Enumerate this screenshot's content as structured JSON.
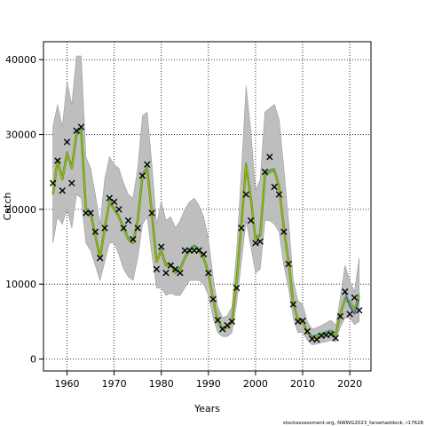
{
  "chart_data": {
    "type": "line",
    "xlabel": "Years",
    "ylabel": "Catch",
    "xlim": [
      1955,
      2024.5
    ],
    "ylim": [
      -1600,
      42400
    ],
    "x_ticks": [
      1960,
      1970,
      1980,
      1990,
      2000,
      2010,
      2020
    ],
    "y_ticks": [
      0,
      10000,
      20000,
      30000,
      40000
    ],
    "grid": true,
    "footnote": "stockassessment.org, NWWG2023_faroehaddock, r17628",
    "colors": {
      "band": "#bebebe",
      "band_edge": "#9a9a9a",
      "estimate_olive": "#6f8f1a",
      "estimate_green": "#8fc21a",
      "estimate_blue": "#3a5fbf",
      "estimate_teal": "#2c9c9c",
      "observation": "#000000"
    },
    "estimate_years": [
      1957,
      1958,
      1959,
      1960,
      1961,
      1962,
      1963,
      1964,
      1965,
      1966,
      1967,
      1968,
      1969,
      1970,
      1971,
      1972,
      1973,
      1974,
      1975,
      1976,
      1977,
      1978,
      1979,
      1980,
      1981,
      1982,
      1983,
      1984,
      1985,
      1986,
      1987,
      1988,
      1989,
      1990,
      1991,
      1992,
      1993,
      1994,
      1995,
      1996,
      1997,
      1998,
      1999,
      2000,
      2001,
      2002,
      2003,
      2004,
      2005,
      2006,
      2007,
      2008,
      2009,
      2010,
      2011,
      2012,
      2013,
      2014,
      2015,
      2016,
      2017,
      2018,
      2019,
      2020,
      2021,
      2022
    ],
    "estimate": [
      22000,
      26500,
      24000,
      27500,
      25500,
      30000,
      30500,
      20000,
      19500,
      16500,
      13500,
      17500,
      21000,
      20000,
      19000,
      17500,
      16000,
      15500,
      18500,
      24500,
      25500,
      19500,
      13000,
      14500,
      12500,
      12500,
      11500,
      12000,
      13500,
      14500,
      15000,
      14500,
      13500,
      11500,
      8000,
      5000,
      4000,
      4200,
      5000,
      10500,
      18000,
      26000,
      21500,
      16000,
      16500,
      24500,
      25000,
      25200,
      23000,
      17500,
      13000,
      7500,
      5200,
      5000,
      3500,
      2800,
      3000,
      3200,
      3400,
      3600,
      3200,
      6000,
      8000,
      7500,
      6500,
      8500
    ],
    "estimate_alt_last": [
      9000,
      7000,
      6000,
      8000
    ],
    "alt_years": [
      2019,
      2020,
      2021,
      2022
    ],
    "ci_lower": [
      15500,
      19000,
      18000,
      20000,
      17500,
      22000,
      21500,
      15500,
      14500,
      12500,
      10500,
      13000,
      15500,
      15500,
      14000,
      12000,
      11000,
      10500,
      13500,
      18000,
      19000,
      14000,
      9500,
      9500,
      8500,
      8800,
      8500,
      8500,
      9500,
      10500,
      10500,
      10500,
      10000,
      8500,
      5500,
      3500,
      3000,
      3000,
      3500,
      7500,
      13000,
      18500,
      15000,
      11500,
      12000,
      18500,
      18500,
      18000,
      17000,
      12500,
      9500,
      5500,
      3500,
      3600,
      2500,
      1900,
      2000,
      2200,
      2300,
      2500,
      2300,
      4300,
      5500,
      5500,
      4600,
      5000
    ],
    "ci_upper": [
      31000,
      34000,
      31000,
      37000,
      34000,
      40500,
      40500,
      27000,
      25500,
      22000,
      18000,
      24000,
      27000,
      26000,
      25500,
      23500,
      22000,
      21500,
      25500,
      32500,
      33000,
      26000,
      18000,
      21000,
      18500,
      19000,
      17500,
      18500,
      20000,
      21000,
      21500,
      20500,
      19000,
      16000,
      11000,
      7000,
      5500,
      5800,
      7000,
      14500,
      25000,
      36500,
      30500,
      22500,
      24000,
      33000,
      33500,
      34000,
      32000,
      25500,
      18500,
      10500,
      7800,
      7300,
      5000,
      4000,
      4200,
      4500,
      4800,
      5200,
      4500,
      8200,
      12500,
      10500,
      9000,
      13500
    ],
    "observed_years": [
      1957,
      1958,
      1959,
      1960,
      1961,
      1962,
      1963,
      1964,
      1965,
      1966,
      1967,
      1968,
      1969,
      1970,
      1971,
      1972,
      1973,
      1974,
      1975,
      1976,
      1977,
      1978,
      1979,
      1980,
      1981,
      1982,
      1983,
      1984,
      1985,
      1986,
      1987,
      1988,
      1989,
      1990,
      1991,
      1992,
      1993,
      1994,
      1995,
      1996,
      1997,
      1998,
      1999,
      2000,
      2001,
      2002,
      2003,
      2004,
      2005,
      2006,
      2007,
      2008,
      2009,
      2010,
      2011,
      2012,
      2013,
      2014,
      2015,
      2016,
      2017,
      2018,
      2019,
      2020,
      2021,
      2022
    ],
    "observed": [
      23500,
      26500,
      22500,
      29000,
      23500,
      30500,
      31000,
      19500,
      19500,
      17000,
      13500,
      17500,
      21500,
      21000,
      20000,
      17500,
      18500,
      16000,
      17500,
      24500,
      26000,
      19500,
      12000,
      15000,
      11500,
      12500,
      12000,
      11500,
      14500,
      14500,
      14500,
      14500,
      14000,
      11500,
      8000,
      5200,
      4000,
      4500,
      5000,
      9500,
      17500,
      22000,
      18500,
      15500,
      15700,
      25000,
      27000,
      23000,
      22000,
      17000,
      12700,
      7300,
      5000,
      5100,
      3700,
      2700,
      2600,
      3100,
      3200,
      3300,
      2800,
      5700,
      9000,
      6000,
      8200,
      6500
    ]
  }
}
